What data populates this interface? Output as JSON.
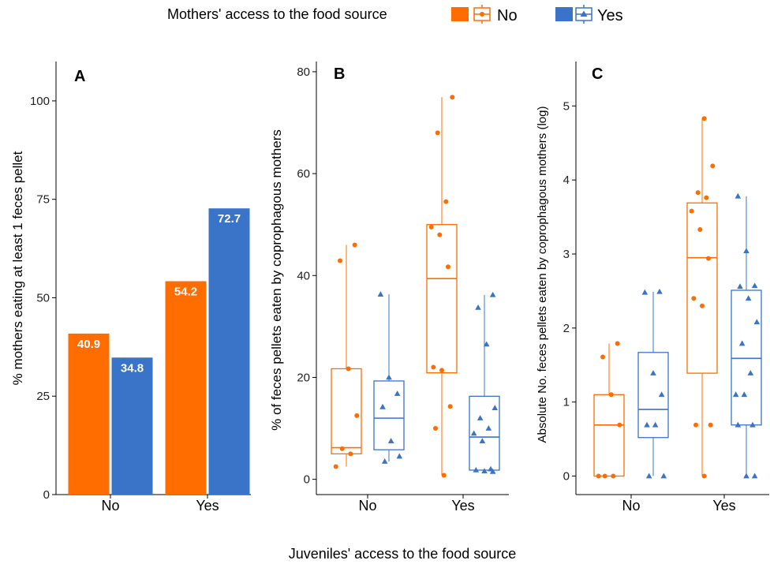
{
  "legend": {
    "title": "Mothers' access to the food source",
    "items": [
      {
        "label": "No",
        "color": "#FF6D00"
      },
      {
        "label": "Yes",
        "color": "#3A74C9"
      }
    ]
  },
  "x_axis_label": "Juveniles' access to the food source",
  "chart_data": [
    {
      "panel": "A",
      "type": "bar",
      "ylabel": "% mothers eating at least 1 feces pellet",
      "categories": [
        "No",
        "Yes"
      ],
      "ylim": [
        0,
        110
      ],
      "yticks": [
        0,
        25,
        50,
        75,
        100
      ],
      "series": [
        {
          "name": "No",
          "values": [
            40.9,
            54.2
          ]
        },
        {
          "name": "Yes",
          "values": [
            34.8,
            72.7
          ]
        }
      ],
      "labels": [
        [
          "40.9",
          "34.8"
        ],
        [
          "54.2",
          "72.7"
        ]
      ]
    },
    {
      "panel": "B",
      "type": "box",
      "ylabel": "% of feces pellets eaten by coprophagous mothers",
      "categories": [
        "No",
        "Yes"
      ],
      "ylim": [
        -3,
        82
      ],
      "yticks": [
        0,
        20,
        40,
        60,
        80
      ],
      "boxes": [
        {
          "category": "No",
          "group": "No",
          "min": 2.5,
          "q1": 5.0,
          "median": 6.2,
          "q3": 21.7,
          "max": 46.0,
          "points": [
            2.5,
            5.0,
            6.0,
            12.5,
            21.7,
            42.9,
            46.0
          ]
        },
        {
          "category": "No",
          "group": "Yes",
          "min": 3.5,
          "q1": 5.8,
          "median": 12.0,
          "q3": 19.3,
          "max": 36.3,
          "points": [
            3.5,
            4.5,
            7.5,
            14.2,
            16.8,
            20.0,
            36.3
          ]
        },
        {
          "category": "Yes",
          "group": "No",
          "min": 0.8,
          "q1": 20.9,
          "median": 39.4,
          "q3": 50.0,
          "max": 75.0,
          "points": [
            0.8,
            10.0,
            14.3,
            21.4,
            22.0,
            41.7,
            48.0,
            49.5,
            54.5,
            68.0,
            75.0
          ]
        },
        {
          "category": "Yes",
          "group": "Yes",
          "min": 1.5,
          "q1": 1.8,
          "median": 8.3,
          "q3": 16.3,
          "max": 36.2,
          "points": [
            1.5,
            1.6,
            1.8,
            2.0,
            7.5,
            9.0,
            10.0,
            12.0,
            14.0,
            26.5,
            33.7,
            36.2
          ]
        }
      ]
    },
    {
      "panel": "C",
      "type": "box",
      "ylabel": "Absolute No. feces pellets eaten by coprophagous mothers (log)",
      "categories": [
        "No",
        "Yes"
      ],
      "ylim": [
        -0.25,
        5.6
      ],
      "yticks": [
        0,
        1,
        2,
        3,
        4,
        5
      ],
      "boxes": [
        {
          "category": "No",
          "group": "No",
          "min": 0,
          "q1": 0,
          "median": 0.69,
          "q3": 1.1,
          "max": 1.79,
          "points": [
            0,
            0,
            0,
            0.69,
            1.1,
            1.61,
            1.79
          ]
        },
        {
          "category": "No",
          "group": "Yes",
          "min": 0,
          "q1": 0.52,
          "median": 0.9,
          "q3": 1.67,
          "max": 2.49,
          "points": [
            0,
            0,
            0.69,
            0.69,
            1.1,
            1.39,
            2.48,
            2.49
          ]
        },
        {
          "category": "Yes",
          "group": "No",
          "min": 0,
          "q1": 1.39,
          "median": 2.95,
          "q3": 3.69,
          "max": 4.84,
          "points": [
            0,
            0.69,
            0.69,
            2.3,
            2.4,
            2.94,
            3.33,
            3.58,
            3.76,
            3.83,
            4.19,
            4.83
          ]
        },
        {
          "category": "Yes",
          "group": "Yes",
          "min": 0,
          "q1": 0.69,
          "median": 1.59,
          "q3": 2.51,
          "max": 3.78,
          "points": [
            0,
            0,
            0.69,
            0.69,
            1.1,
            1.1,
            1.39,
            1.79,
            2.08,
            2.4,
            2.56,
            2.57,
            3.04,
            3.78
          ]
        }
      ]
    }
  ]
}
